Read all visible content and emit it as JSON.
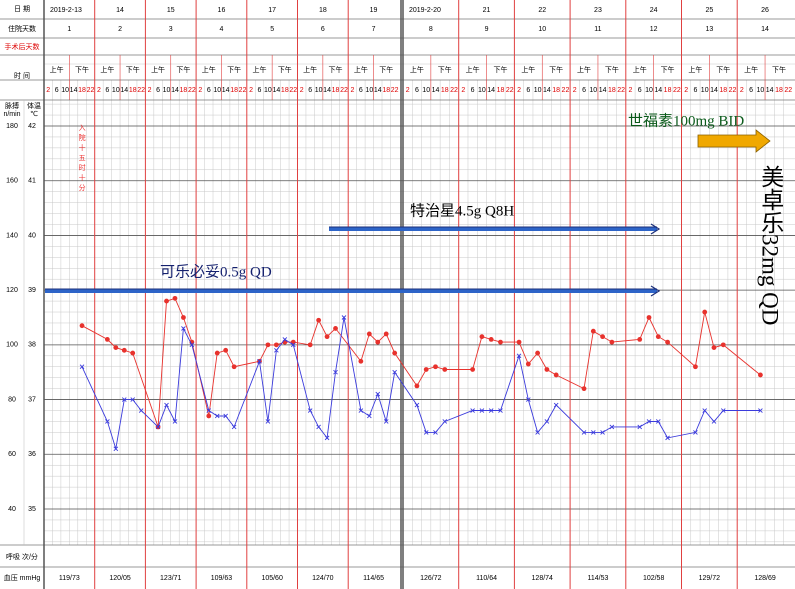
{
  "sheet": {
    "date_label": "日 期",
    "days_label": "住院天数",
    "postop_label": "手术后天数",
    "time_label": "时 间",
    "am": "上午",
    "pm": "下午",
    "hours": [
      2,
      6,
      10,
      14,
      18,
      22
    ],
    "hour_colors": [
      "#d00",
      "#000",
      "#000",
      "#000",
      "#d00",
      "#d00"
    ],
    "dates": [
      "2019-2-13",
      "14",
      "15",
      "16",
      "17",
      "18",
      "19",
      "2019-2-20",
      "21",
      "22",
      "23",
      "24",
      "25",
      "26"
    ],
    "hospital_days": [
      1,
      2,
      3,
      4,
      5,
      6,
      7,
      8,
      9,
      10,
      11,
      12,
      13,
      14
    ],
    "resp_label": "呼吸 次/分",
    "bp_label": "血压 mmHg",
    "bp": [
      "119/73",
      "120/05",
      "123/71",
      "109/63",
      "105/60",
      "124/70",
      "114/65",
      "126/72",
      "110/64",
      "128/74",
      "114/53",
      "102/58",
      "129/72",
      "128/69"
    ]
  },
  "chart_data": {
    "type": "line",
    "ylabel": "脉搏",
    "yunit": "n/min",
    "y2label": "体温",
    "y2unit": "℃",
    "ylim": [
      40,
      180
    ],
    "yticks": [
      40,
      60,
      80,
      100,
      120,
      140,
      160,
      180
    ],
    "y2lim": [
      35,
      42
    ],
    "y2ticks": [
      35,
      36,
      37,
      38,
      39,
      40,
      41,
      42
    ],
    "grid": true,
    "series": [
      {
        "color": "#e8322d",
        "marker": "dot",
        "x": [
          4,
          7,
          8,
          9,
          10,
          13,
          14,
          15,
          16,
          17,
          19,
          20,
          21,
          22,
          25,
          26,
          27,
          28,
          29,
          31,
          32,
          33,
          34,
          37,
          38,
          39,
          40,
          41,
          43,
          44,
          45,
          46,
          49,
          50,
          51,
          52,
          54,
          55,
          56,
          57,
          58,
          61,
          62,
          63,
          64,
          67,
          68,
          69,
          70,
          73,
          74,
          75,
          76,
          80
        ],
        "values": [
          107,
          102,
          99,
          98,
          97,
          70,
          116,
          117,
          110,
          101,
          74,
          97,
          98,
          92,
          94,
          100,
          100,
          101,
          101,
          100,
          109,
          103,
          106,
          94,
          104,
          101,
          104,
          97,
          85,
          91,
          92,
          91,
          91,
          103,
          102,
          101,
          101,
          93,
          97,
          91,
          89,
          84,
          105,
          103,
          101,
          102,
          110,
          103,
          101,
          92,
          112,
          99,
          100,
          89
        ]
      },
      {
        "color": "#3b3bdc",
        "marker": "cross",
        "axis": "y2",
        "x": [
          4,
          7,
          8,
          9,
          10,
          11,
          13,
          14,
          15,
          16,
          17,
          19,
          20,
          21,
          22,
          25,
          26,
          27,
          28,
          29,
          31,
          32,
          33,
          34,
          35,
          37,
          38,
          39,
          40,
          41,
          43,
          44,
          45,
          46,
          49,
          50,
          51,
          52,
          54,
          55,
          56,
          57,
          58,
          61,
          62,
          63,
          64,
          67,
          68,
          69,
          70,
          73,
          74,
          75,
          76,
          80
        ],
        "values": [
          37.6,
          36.6,
          36.1,
          37.0,
          37.0,
          36.8,
          36.5,
          36.9,
          36.6,
          38.3,
          38.0,
          36.8,
          36.7,
          36.7,
          36.5,
          37.7,
          36.6,
          37.9,
          38.1,
          38.0,
          36.8,
          36.5,
          36.3,
          37.5,
          38.5,
          36.8,
          36.7,
          37.1,
          36.6,
          37.5,
          36.9,
          36.4,
          36.4,
          36.6,
          36.8,
          36.8,
          36.8,
          36.8,
          37.8,
          37.0,
          36.4,
          36.6,
          36.9,
          36.4,
          36.4,
          36.4,
          36.5,
          36.5,
          36.6,
          36.6,
          36.3,
          36.4,
          36.8,
          36.6,
          36.8,
          36.8
        ]
      }
    ],
    "annotations": [
      {
        "text": "可乐必妥0.5g QD"
      },
      {
        "text": "特治星4.5g Q8H"
      },
      {
        "text": "世福素100mg BID"
      },
      {
        "text": "美卓乐32mg QD"
      }
    ],
    "admission_note": "入院十五时十分"
  }
}
